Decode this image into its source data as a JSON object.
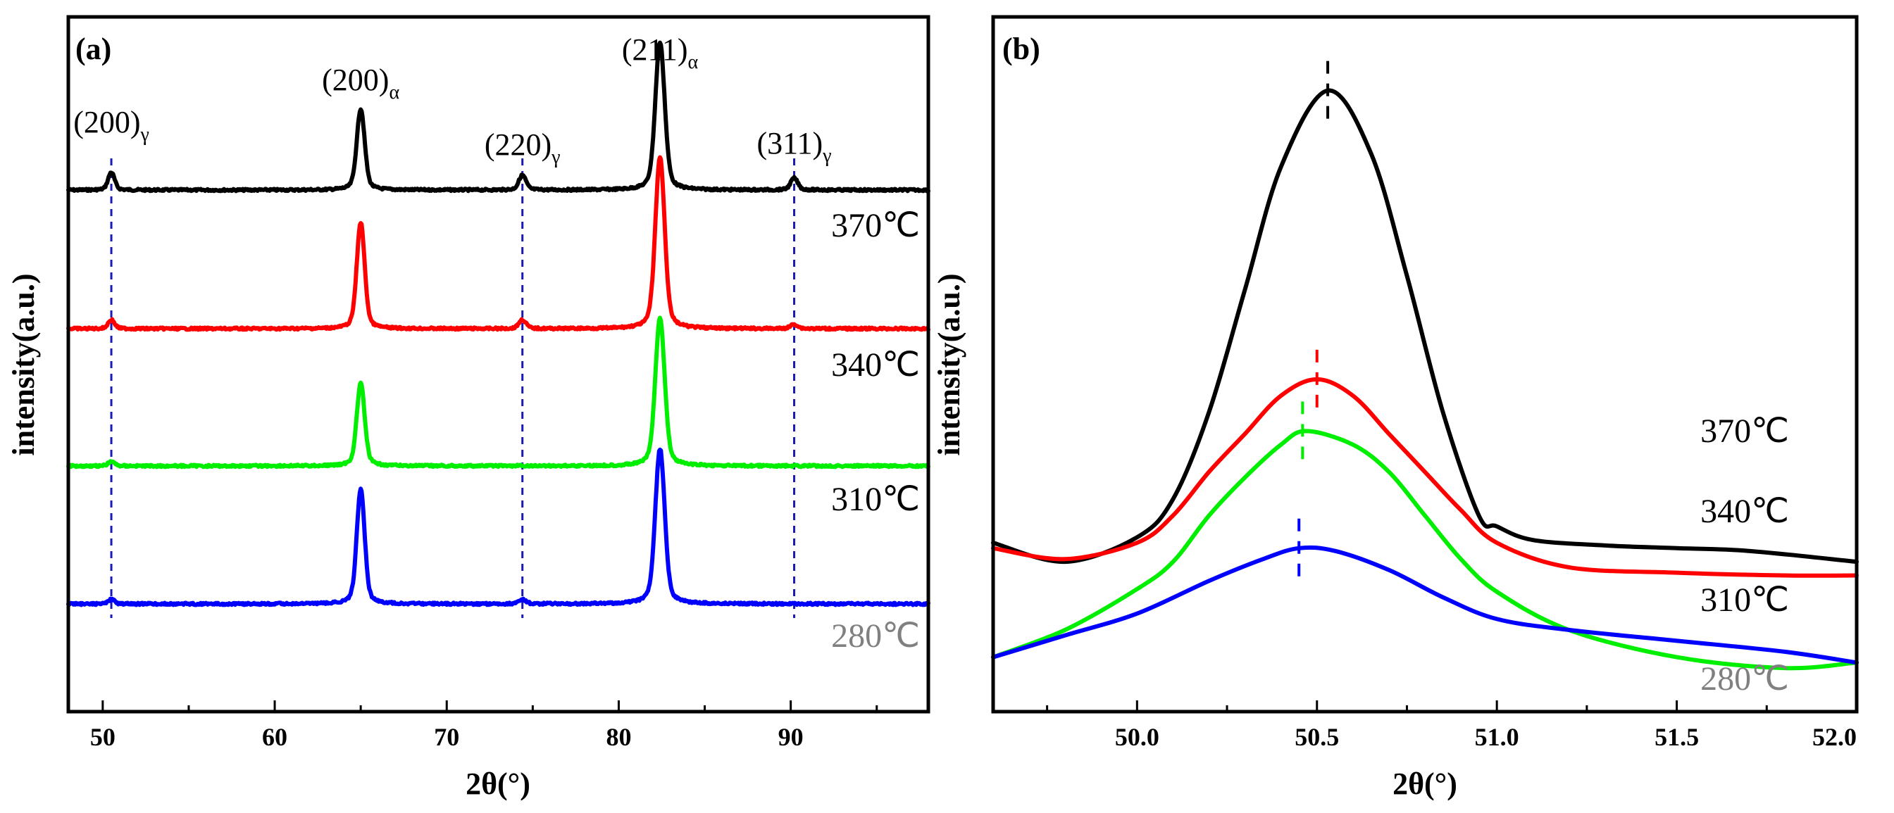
{
  "chart_data": [
    {
      "panel": "(a)",
      "type": "line",
      "xlabel": "2θ(°)",
      "ylabel": "intensity(a.u.)",
      "xlim": [
        48,
        98
      ],
      "xticks": [
        50,
        60,
        70,
        80,
        90
      ],
      "xtick_labels": [
        "50",
        "60",
        "70",
        "80",
        "90"
      ],
      "y_ticks_shown": false,
      "peaks": [
        {
          "label": "(200)",
          "sub": "γ",
          "x": 50.5,
          "dashed_reference": true
        },
        {
          "label": "(200)",
          "sub": "α",
          "x": 65.0,
          "dashed_reference": false
        },
        {
          "label": "(220)",
          "sub": "γ",
          "x": 74.4,
          "dashed_reference": true
        },
        {
          "label": "(211)",
          "sub": "α",
          "x": 82.4,
          "dashed_reference": false
        },
        {
          "label": "(311)",
          "sub": "γ",
          "x": 90.2,
          "dashed_reference": true
        }
      ],
      "series": [
        {
          "name": "370℃",
          "color": "#000000",
          "offset": 3,
          "peak_heights": [
            0.12,
            0.55,
            0.1,
            1.0,
            0.08
          ]
        },
        {
          "name": "340℃",
          "color": "#ff0000",
          "offset": 2,
          "peak_heights": [
            0.06,
            0.72,
            0.06,
            1.16,
            0.03
          ]
        },
        {
          "name": "310℃",
          "color": "#00ee00",
          "offset": 1,
          "peak_heights": [
            0.03,
            0.56,
            0.0,
            1.0,
            0.0
          ]
        },
        {
          "name": "280℃",
          "color": "#0000ff",
          "offset": 0,
          "peak_heights": [
            0.03,
            0.78,
            0.03,
            1.05,
            0.0
          ]
        }
      ]
    },
    {
      "panel": "(b)",
      "type": "line",
      "xlabel": "2θ(°)",
      "ylabel": "intensity(a.u.)",
      "xlim": [
        49.6,
        52.0
      ],
      "xticks": [
        50.0,
        50.5,
        51.0,
        51.5,
        52.0
      ],
      "xtick_labels": [
        "50.0",
        "50.5",
        "51.0",
        "51.5",
        "52.0"
      ],
      "y_ticks_shown": false,
      "series": [
        {
          "name": "370℃",
          "color": "#000000",
          "peak_position": 50.53,
          "x": [
            49.6,
            49.8,
            50.0,
            50.1,
            50.2,
            50.3,
            50.4,
            50.53,
            50.65,
            50.75,
            50.85,
            50.95,
            51.0,
            51.1,
            51.3,
            51.5,
            51.7,
            52.0
          ],
          "y": [
            0.62,
            0.55,
            0.64,
            0.78,
            1.1,
            1.55,
            2.0,
            2.28,
            2.05,
            1.6,
            1.1,
            0.72,
            0.68,
            0.63,
            0.61,
            0.6,
            0.59,
            0.55
          ]
        },
        {
          "name": "340℃",
          "color": "#ff0000",
          "peak_position": 50.5,
          "x": [
            49.6,
            49.8,
            50.0,
            50.1,
            50.2,
            50.3,
            50.4,
            50.5,
            50.6,
            50.7,
            50.8,
            50.9,
            51.0,
            51.2,
            51.5,
            51.8,
            52.0
          ],
          "y": [
            0.6,
            0.56,
            0.62,
            0.72,
            0.88,
            1.02,
            1.16,
            1.22,
            1.16,
            1.02,
            0.88,
            0.74,
            0.62,
            0.53,
            0.51,
            0.5,
            0.5
          ]
        },
        {
          "name": "310℃",
          "color": "#00ee00",
          "peak_position": 50.46,
          "x": [
            49.6,
            49.8,
            50.0,
            50.1,
            50.2,
            50.3,
            50.4,
            50.47,
            50.6,
            50.7,
            50.8,
            50.9,
            51.0,
            51.2,
            51.5,
            51.8,
            52.0
          ],
          "y": [
            0.2,
            0.3,
            0.45,
            0.55,
            0.72,
            0.86,
            0.98,
            1.03,
            0.98,
            0.88,
            0.72,
            0.56,
            0.44,
            0.3,
            0.2,
            0.16,
            0.18
          ]
        },
        {
          "name": "280℃",
          "color": "#0000ff",
          "peak_position": 50.45,
          "x": [
            49.6,
            49.8,
            50.0,
            50.2,
            50.35,
            50.45,
            50.55,
            50.7,
            50.85,
            51.0,
            51.2,
            51.5,
            51.8,
            52.0
          ],
          "y": [
            0.2,
            0.28,
            0.36,
            0.48,
            0.56,
            0.6,
            0.59,
            0.52,
            0.42,
            0.34,
            0.3,
            0.26,
            0.22,
            0.18
          ]
        }
      ]
    }
  ]
}
